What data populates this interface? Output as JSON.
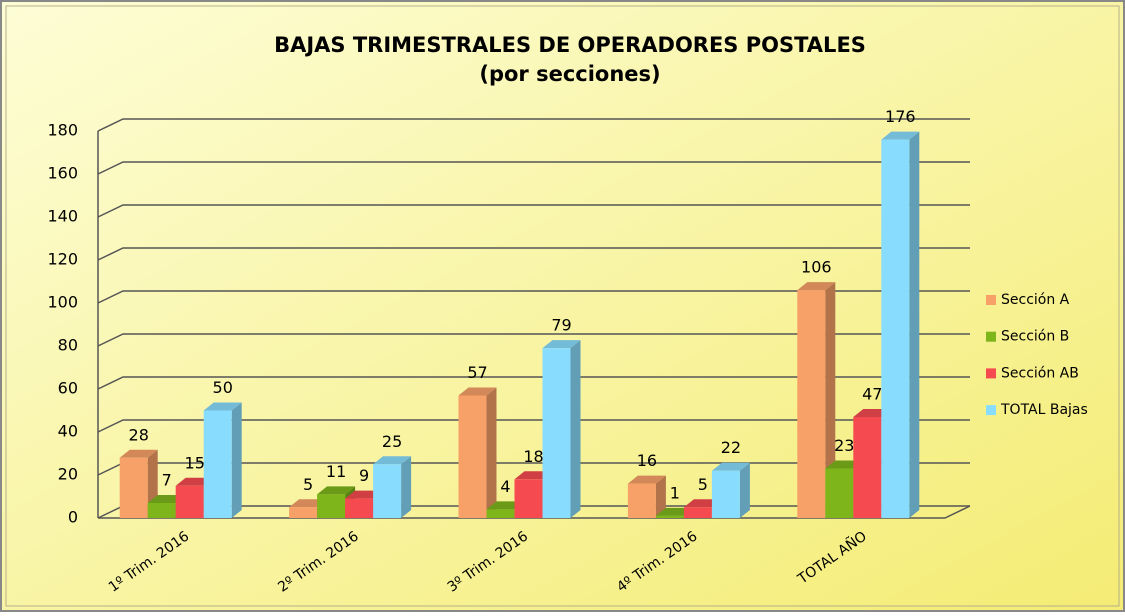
{
  "chart_data": {
    "type": "bar3d",
    "title": "BAJAS TRIMESTRALES DE OPERADORES POSTALES",
    "subtitle": "(por secciones)",
    "categories": [
      "1º Trim. 2016",
      "2º Trim. 2016",
      "3º Trim. 2016",
      "4º Trim. 2016",
      "TOTAL AÑO"
    ],
    "series": [
      {
        "name": "Sección A",
        "color": "#f7a068",
        "values": [
          28,
          5,
          57,
          16,
          106
        ]
      },
      {
        "name": "Sección B",
        "color": "#7db51b",
        "values": [
          7,
          11,
          4,
          1,
          23
        ]
      },
      {
        "name": "Sección AB",
        "color": "#f54a50",
        "values": [
          15,
          9,
          18,
          5,
          47
        ]
      },
      {
        "name": "TOTAL Bajas",
        "color": "#88dcfd",
        "values": [
          50,
          25,
          79,
          22,
          176
        ]
      }
    ],
    "ylim": [
      0,
      180
    ],
    "yticks": [
      0,
      20,
      40,
      60,
      80,
      100,
      120,
      140,
      160,
      180
    ],
    "grid": true,
    "legend": "right"
  }
}
